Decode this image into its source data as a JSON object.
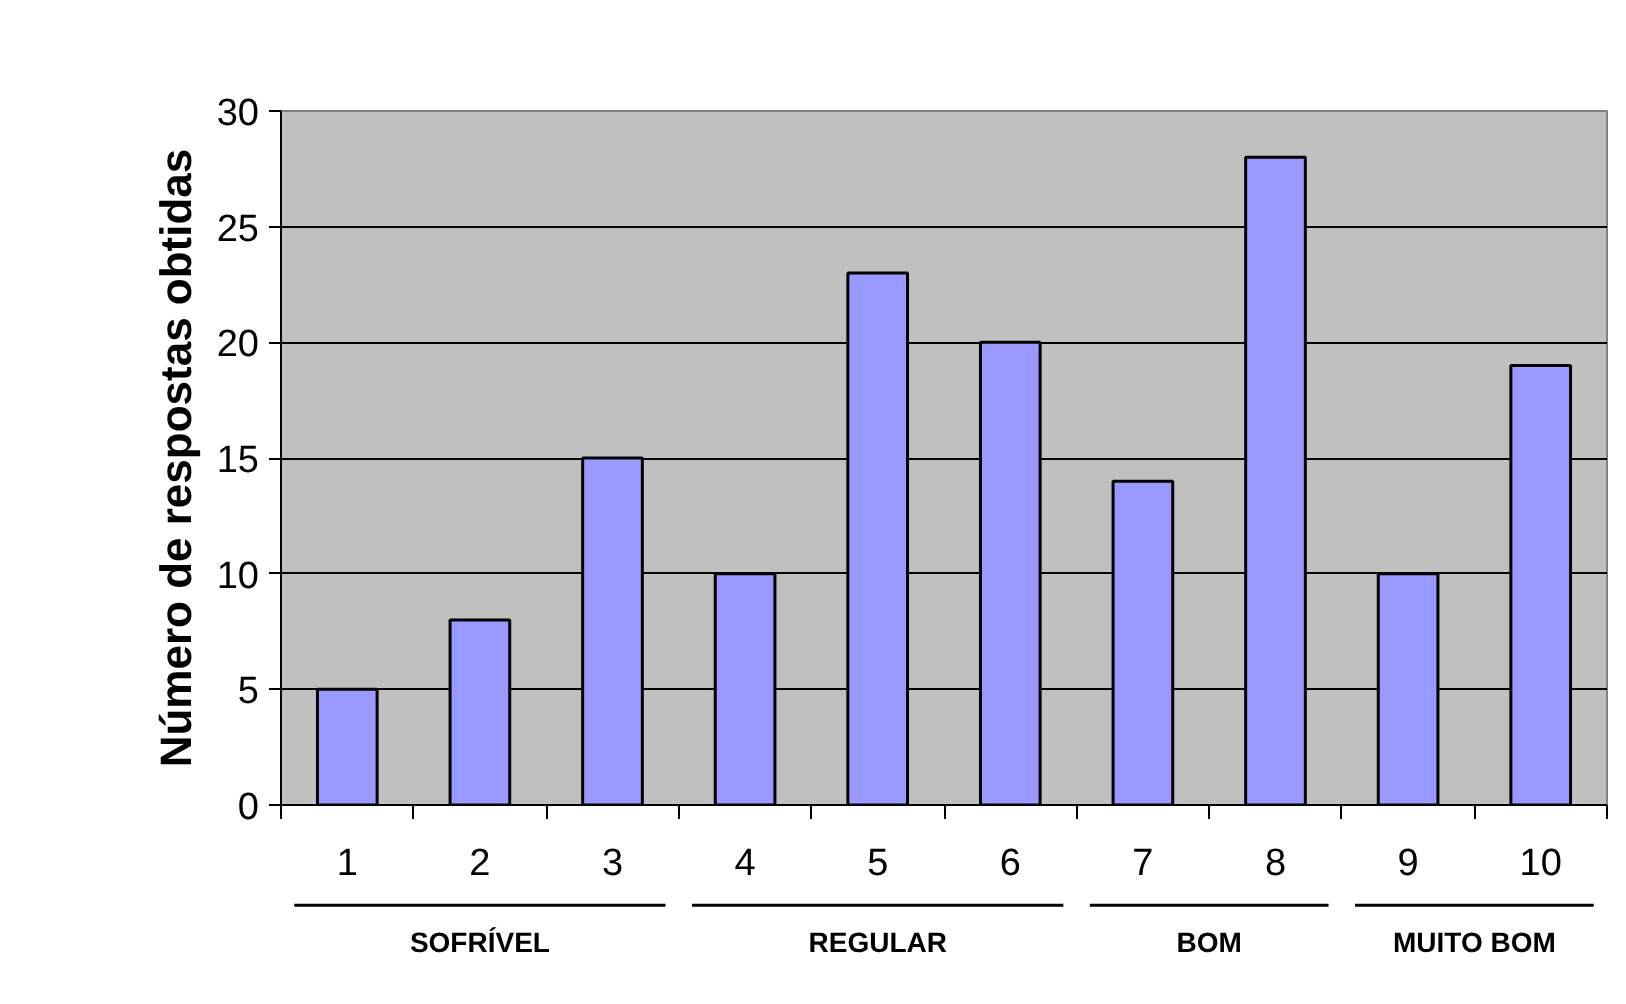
{
  "chart_data": {
    "type": "bar",
    "ylabel": "Número de respostas obtidas",
    "categories": [
      "1",
      "2",
      "3",
      "4",
      "5",
      "6",
      "7",
      "8",
      "9",
      "10"
    ],
    "values": [
      5,
      8,
      15,
      10,
      23,
      20,
      14,
      28,
      10,
      19
    ],
    "color": "#9999ff",
    "ylim": [
      0,
      30
    ],
    "yticks": [
      0,
      5,
      10,
      15,
      20,
      25,
      30
    ],
    "grid": "y",
    "annotations": [
      "SOFRÍVEL",
      "REGULAR",
      "BOM",
      "MUITO BOM"
    ]
  }
}
